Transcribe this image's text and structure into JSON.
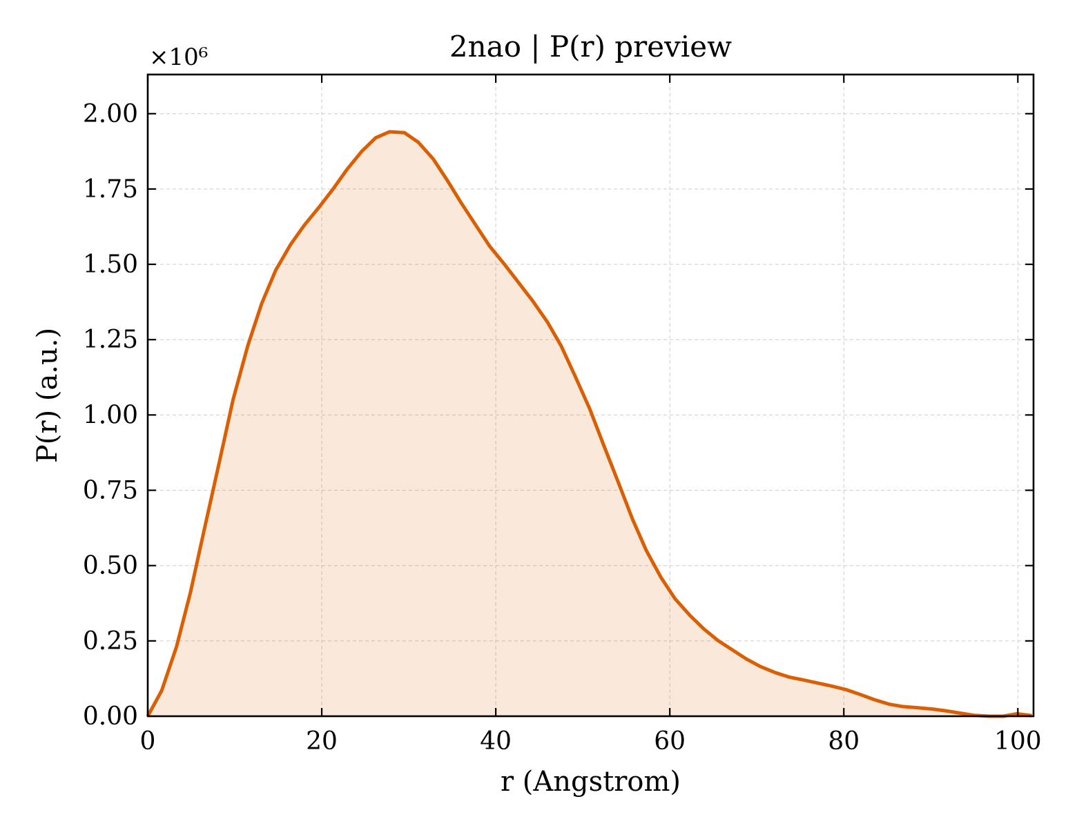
{
  "chart_data": {
    "type": "area",
    "title": "2nao | P(r) preview",
    "xlabel": "r (Angstrom)",
    "ylabel": "P(r) (a.u.)",
    "y_offset_label": "×10⁶",
    "xlim": [
      0,
      101.8
    ],
    "ylim": [
      0,
      2.13
    ],
    "x_ticks": [
      0,
      20,
      40,
      60,
      80,
      100
    ],
    "x_tick_labels": [
      "0",
      "20",
      "40",
      "60",
      "80",
      "100"
    ],
    "y_ticks": [
      0,
      0.25,
      0.5,
      0.75,
      1.0,
      1.25,
      1.5,
      1.75,
      2.0
    ],
    "y_tick_labels": [
      "0.00",
      "0.25",
      "0.50",
      "0.75",
      "1.00",
      "1.25",
      "1.50",
      "1.75",
      "2.00"
    ],
    "grid": true,
    "tick_direction": "in",
    "series": [
      {
        "color": "#d95f02",
        "fill_color": "#d95f02",
        "fill_opacity": 0.14,
        "x": [
          0,
          1.6,
          3.3,
          4.9,
          6.5,
          8.2,
          9.8,
          11.5,
          13.1,
          14.7,
          16.4,
          18.0,
          19.7,
          21.3,
          22.9,
          24.6,
          26.2,
          27.8,
          29.5,
          31.1,
          32.8,
          34.4,
          36.0,
          37.7,
          39.3,
          41.0,
          42.6,
          44.2,
          45.9,
          47.5,
          49.1,
          50.8,
          52.4,
          54.1,
          55.7,
          57.3,
          59.0,
          60.6,
          62.3,
          63.9,
          65.5,
          67.2,
          68.8,
          70.4,
          72.1,
          73.7,
          75.4,
          77.0,
          78.6,
          80.3,
          81.9,
          83.5,
          85.2,
          86.8,
          88.5,
          90.1,
          91.7,
          93.4,
          95.0,
          96.7,
          98.3,
          99.9,
          101.6
        ],
        "y": [
          0.0,
          0.085,
          0.23,
          0.41,
          0.62,
          0.84,
          1.05,
          1.23,
          1.37,
          1.48,
          1.565,
          1.63,
          1.69,
          1.75,
          1.815,
          1.875,
          1.92,
          1.94,
          1.937,
          1.905,
          1.85,
          1.78,
          1.705,
          1.63,
          1.56,
          1.5,
          1.44,
          1.38,
          1.31,
          1.23,
          1.13,
          1.02,
          0.9,
          0.775,
          0.655,
          0.55,
          0.46,
          0.39,
          0.335,
          0.29,
          0.252,
          0.22,
          0.19,
          0.165,
          0.145,
          0.13,
          0.12,
          0.11,
          0.1,
          0.088,
          0.072,
          0.055,
          0.04,
          0.032,
          0.028,
          0.024,
          0.018,
          0.01,
          0.003,
          0.0,
          0.0,
          0.008,
          0.002
        ]
      }
    ]
  }
}
